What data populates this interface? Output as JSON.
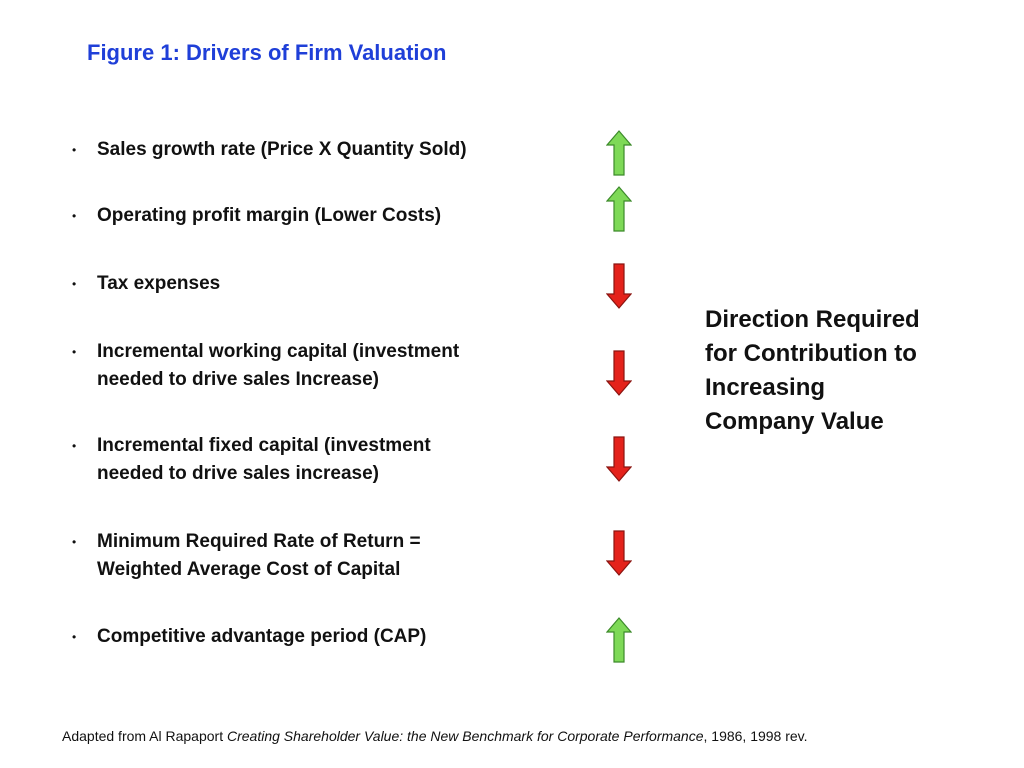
{
  "title": "Figure 1: Drivers of Firm Valuation",
  "items": [
    {
      "lines": [
        "Sales growth rate (Price X Quantity Sold)"
      ],
      "direction": "up"
    },
    {
      "lines": [
        "Operating profit margin (Lower Costs)"
      ],
      "direction": "up"
    },
    {
      "lines": [
        "Tax expenses"
      ],
      "direction": "down"
    },
    {
      "lines": [
        "Incremental working capital (investment",
        "needed to drive sales Increase)"
      ],
      "direction": "down"
    },
    {
      "lines": [
        "Incremental fixed capital (investment",
        "needed to drive sales increase)"
      ],
      "direction": "down"
    },
    {
      "lines": [
        "Minimum Required Rate of Return =",
        "Weighted Average Cost of Capital"
      ],
      "direction": "down"
    },
    {
      "lines": [
        "Competitive advantage period (CAP)"
      ],
      "direction": "up"
    }
  ],
  "arrow_colors": {
    "up": "#7ed957",
    "down": "#e4221b"
  },
  "side_note": [
    "Direction Required",
    "for Contribution to",
    "Increasing",
    "Company Value"
  ],
  "footnote": {
    "before": "Adapted from Al Rapaport",
    "title": "Creating Shareholder Value: the New Benchmark for Corporate Performance",
    "after": ", 1986, 1998 rev."
  }
}
